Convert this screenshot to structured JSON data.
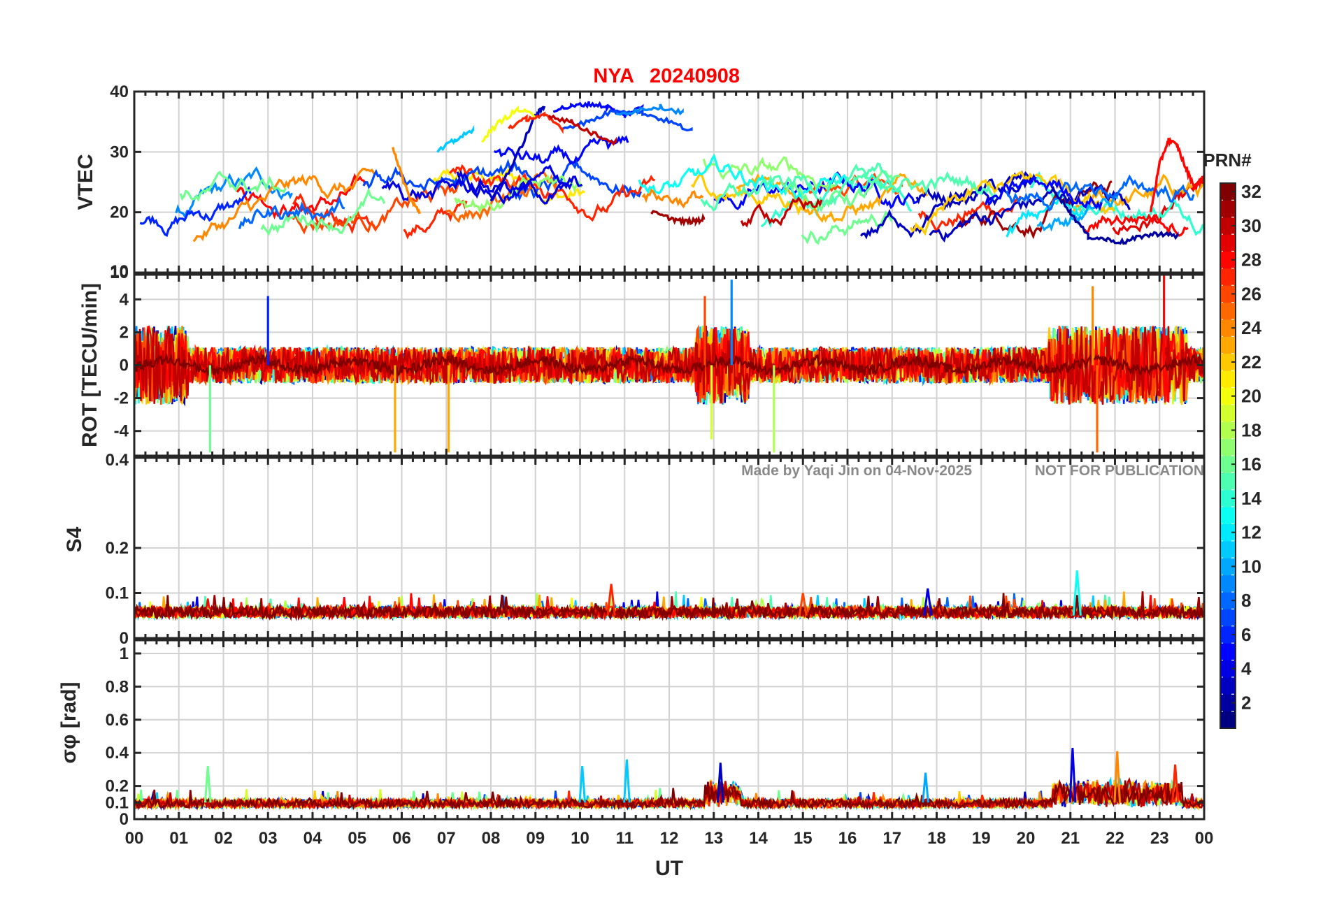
{
  "chart_data": {
    "type": "line",
    "title": {
      "station": "NYA",
      "date": "20240908",
      "color": "#ff0000"
    },
    "xlabel": "UT",
    "x_ticks": [
      "00",
      "01",
      "02",
      "03",
      "04",
      "05",
      "06",
      "07",
      "08",
      "09",
      "10",
      "11",
      "12",
      "13",
      "14",
      "15",
      "16",
      "17",
      "18",
      "19",
      "20",
      "21",
      "22",
      "23",
      "00"
    ],
    "xlim": [
      0,
      24
    ],
    "watermark": {
      "credit": "Made by Yaqi Jin on 04-Nov-2025",
      "notice": "NOT FOR PUBLICATION"
    },
    "colorbar": {
      "label": "PRN#",
      "range": [
        1,
        32
      ],
      "ticks": [
        "2",
        "4",
        "6",
        "8",
        "10",
        "12",
        "14",
        "16",
        "18",
        "20",
        "22",
        "24",
        "26",
        "28",
        "30",
        "32"
      ],
      "colormap": "jet"
    },
    "panels": [
      {
        "id": "vtec",
        "ylabel": "VTEC",
        "ylim": [
          10,
          40
        ],
        "yticks": [
          {
            "v": 10,
            "label": "10"
          },
          {
            "v": 20,
            "label": "20"
          },
          {
            "v": 30,
            "label": "30"
          },
          {
            "v": 40,
            "label": "40"
          }
        ],
        "series": [
          {
            "prn": 3,
            "x": [
              8.0,
              8.5,
              9.0,
              9.2
            ],
            "y": [
              22,
              28,
              36,
              37.5
            ]
          },
          {
            "prn": 5,
            "x": [
              9.4,
              9.8,
              10.2,
              10.6,
              11.0,
              11.4
            ],
            "y": [
              37,
              37.5,
              38,
              37.5,
              36,
              37.5
            ]
          },
          {
            "prn": 7,
            "x": [
              9.6,
              10.2,
              10.8,
              11.4,
              12.0,
              12.5
            ],
            "y": [
              34,
              35,
              37,
              36.5,
              35,
              33.5
            ]
          },
          {
            "prn": 9,
            "x": [
              10.8,
              11.3,
              11.8,
              12.3
            ],
            "y": [
              36,
              37,
              37.5,
              36.5
            ]
          },
          {
            "prn": 11,
            "x": [
              6.8,
              7.2,
              7.6
            ],
            "y": [
              30,
              32,
              33.5
            ]
          },
          {
            "prn": 20,
            "x": [
              7.8,
              8.2,
              8.6,
              9.0
            ],
            "y": [
              32,
              35,
              37,
              36
            ]
          },
          {
            "prn": 24,
            "x": [
              5.8,
              6.0,
              6.2,
              6.4
            ],
            "y": [
              31,
              26,
              22,
              20
            ]
          },
          {
            "prn": 27,
            "x": [
              8.4,
              8.8,
              9.2,
              9.6
            ],
            "y": [
              34,
              35.5,
              36,
              34
            ]
          },
          {
            "prn": 30,
            "x": [
              9.3,
              9.8,
              10.3,
              10.8
            ],
            "y": [
              36,
              35,
              33,
              31.5
            ]
          },
          {
            "prn": 31,
            "x": [
              11.6,
              12.0,
              12.3,
              12.6,
              12.8
            ],
            "y": [
              20,
              19,
              18.5,
              18.5,
              19
            ]
          },
          {
            "prn": 2,
            "x": [
              20.6,
              21.0,
              21.4,
              21.8,
              22.2,
              22.6,
              23.0,
              23.4
            ],
            "y": [
              24,
              20,
              16,
              15.5,
              15,
              16,
              16.5,
              16
            ]
          },
          {
            "prn": 28,
            "x": [
              22.8,
              23.0,
              23.2,
              23.4,
              23.6,
              23.8,
              24.0
            ],
            "y": [
              20,
              28,
              32,
              31,
              27,
              24,
              26
            ]
          }
        ]
      },
      {
        "id": "rot",
        "ylabel": "ROT [TECU/min]",
        "ylim": [
          -5.5,
          5.5
        ],
        "yticks": [
          {
            "v": -4,
            "label": "-4"
          },
          {
            "v": -2,
            "label": "-2"
          },
          {
            "v": 0,
            "label": "0"
          },
          {
            "v": 2,
            "label": "2"
          },
          {
            "v": 4,
            "label": "4"
          }
        ],
        "edge_labels": {
          "top": "10",
          "bottom": "0.4"
        },
        "spikes": [
          {
            "prn": 16,
            "x": 1.7,
            "y": -5.3
          },
          {
            "prn": 23,
            "x": 5.85,
            "y": -5.3
          },
          {
            "prn": 23,
            "x": 7.05,
            "y": -5.3
          },
          {
            "prn": 18,
            "x": 14.35,
            "y": -5.3
          },
          {
            "prn": 25,
            "x": 21.6,
            "y": -5.3
          },
          {
            "prn": 6,
            "x": 3.0,
            "y": 4.2
          },
          {
            "prn": 9,
            "x": 13.4,
            "y": 5.2
          },
          {
            "prn": 28,
            "x": 23.1,
            "y": 5.5
          },
          {
            "prn": 24,
            "x": 21.5,
            "y": 4.8
          },
          {
            "prn": 26,
            "x": 12.8,
            "y": 4.2
          },
          {
            "prn": 19,
            "x": 12.95,
            "y": -4.5
          }
        ]
      },
      {
        "id": "s4",
        "ylabel": "S4",
        "ylim": [
          0,
          0.4
        ],
        "yticks": [
          {
            "v": 0,
            "label": "0"
          },
          {
            "v": 0.1,
            "label": "0.1"
          },
          {
            "v": 0.2,
            "label": "0.2"
          }
        ],
        "peaks": [
          {
            "prn": 27,
            "x": 10.7,
            "y": 0.12
          },
          {
            "prn": 13,
            "x": 21.15,
            "y": 0.15
          },
          {
            "prn": 4,
            "x": 17.8,
            "y": 0.11
          },
          {
            "prn": 26,
            "x": 15.0,
            "y": 0.1
          }
        ]
      },
      {
        "id": "sigma_phi",
        "ylabel": "σφ [rad]",
        "ylim": [
          0,
          1.08
        ],
        "yticks": [
          {
            "v": 0,
            "label": "0"
          },
          {
            "v": 0.1,
            "label": "0.1"
          },
          {
            "v": 0.2,
            "label": "0.2"
          },
          {
            "v": 0.4,
            "label": "0.4"
          },
          {
            "v": 0.6,
            "label": "0.6"
          },
          {
            "v": 0.8,
            "label": "0.8"
          },
          {
            "v": 1,
            "label": "1"
          }
        ],
        "peaks": [
          {
            "prn": 16,
            "x": 1.65,
            "y": 0.32
          },
          {
            "prn": 11,
            "x": 10.05,
            "y": 0.32
          },
          {
            "prn": 11,
            "x": 11.05,
            "y": 0.36
          },
          {
            "prn": 3,
            "x": 13.15,
            "y": 0.34
          },
          {
            "prn": 10,
            "x": 17.75,
            "y": 0.28
          },
          {
            "prn": 4,
            "x": 21.05,
            "y": 0.43
          },
          {
            "prn": 24,
            "x": 22.05,
            "y": 0.41
          },
          {
            "prn": 27,
            "x": 23.35,
            "y": 0.33
          }
        ]
      }
    ]
  }
}
